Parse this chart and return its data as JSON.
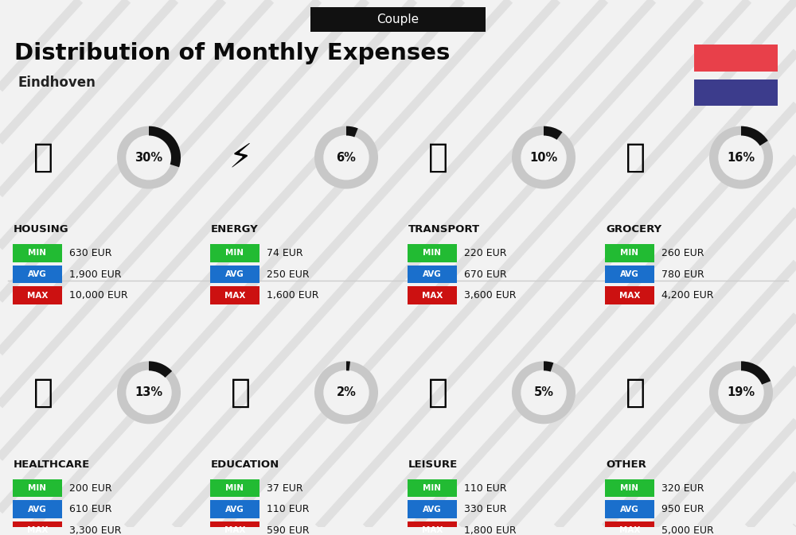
{
  "title": "Distribution of Monthly Expenses",
  "subtitle": "Eindhoven",
  "header_label": "Couple",
  "background_color": "#f2f2f2",
  "categories": [
    {
      "name": "HOUSING",
      "pct": 30,
      "min_val": "630 EUR",
      "avg_val": "1,900 EUR",
      "max_val": "10,000 EUR",
      "row": 0,
      "col": 0
    },
    {
      "name": "ENERGY",
      "pct": 6,
      "min_val": "74 EUR",
      "avg_val": "250 EUR",
      "max_val": "1,600 EUR",
      "row": 0,
      "col": 1
    },
    {
      "name": "TRANSPORT",
      "pct": 10,
      "min_val": "220 EUR",
      "avg_val": "670 EUR",
      "max_val": "3,600 EUR",
      "row": 0,
      "col": 2
    },
    {
      "name": "GROCERY",
      "pct": 16,
      "min_val": "260 EUR",
      "avg_val": "780 EUR",
      "max_val": "4,200 EUR",
      "row": 0,
      "col": 3
    },
    {
      "name": "HEALTHCARE",
      "pct": 13,
      "min_val": "200 EUR",
      "avg_val": "610 EUR",
      "max_val": "3,300 EUR",
      "row": 1,
      "col": 0
    },
    {
      "name": "EDUCATION",
      "pct": 2,
      "min_val": "37 EUR",
      "avg_val": "110 EUR",
      "max_val": "590 EUR",
      "row": 1,
      "col": 1
    },
    {
      "name": "LEISURE",
      "pct": 5,
      "min_val": "110 EUR",
      "avg_val": "330 EUR",
      "max_val": "1,800 EUR",
      "row": 1,
      "col": 2
    },
    {
      "name": "OTHER",
      "pct": 19,
      "min_val": "320 EUR",
      "avg_val": "950 EUR",
      "max_val": "5,000 EUR",
      "row": 1,
      "col": 3
    }
  ],
  "min_color": "#22bb33",
  "avg_color": "#1a6fcc",
  "max_color": "#cc1111",
  "flag_red": "#e8404a",
  "flag_blue": "#3c3c8c",
  "circle_bg": "#c8c8c8",
  "circle_fg": "#111111"
}
